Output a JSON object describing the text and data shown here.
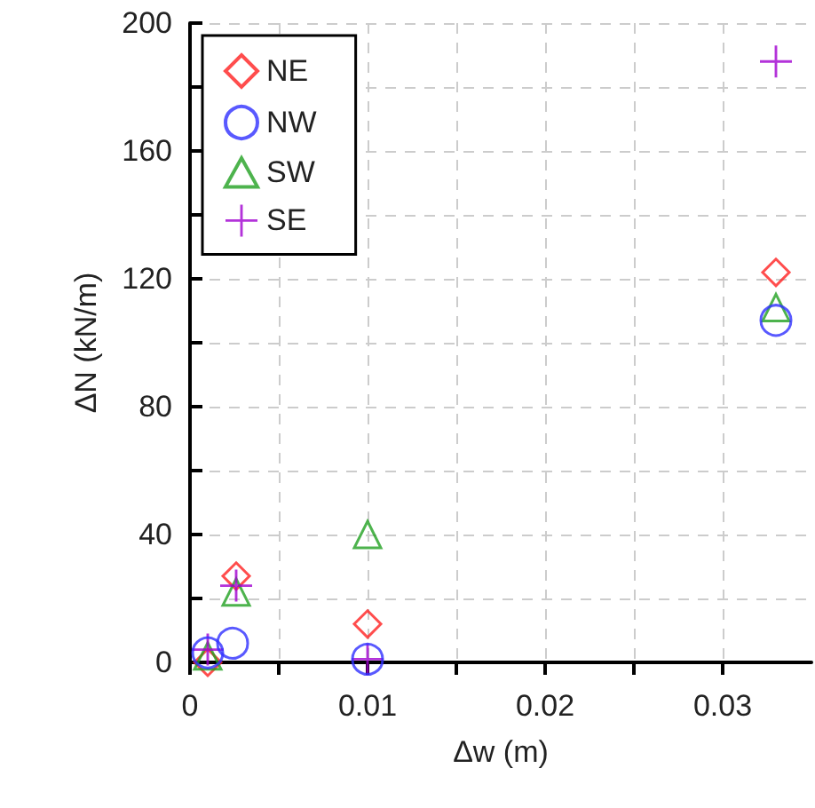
{
  "chart_data": {
    "type": "scatter",
    "xlabel": "Δw (m)",
    "ylabel": "ΔN (kN/m)",
    "xlim": [
      0,
      0.035
    ],
    "xticks": [
      0,
      0.01,
      0.02,
      0.03
    ],
    "ylim": [
      0,
      200
    ],
    "yticks": [
      0,
      40,
      80,
      120,
      160,
      200
    ],
    "grid": true,
    "legend": "top left",
    "series": [
      {
        "name": "NE",
        "color": "#ff2020",
        "marker": "diamond",
        "x": [
          0.001,
          0.0026,
          0.01,
          0.033
        ],
        "values": [
          0,
          27,
          12,
          122
        ]
      },
      {
        "name": "NW",
        "color": "#3030ff",
        "marker": "circle",
        "x": [
          0.001,
          0.0024,
          0.01,
          0.033
        ],
        "values": [
          3,
          6,
          1,
          107
        ]
      },
      {
        "name": "SW",
        "color": "#20a020",
        "marker": "triangle",
        "x": [
          0.001,
          0.0026,
          0.01,
          0.033
        ],
        "values": [
          2,
          22,
          40,
          111
        ]
      },
      {
        "name": "SE",
        "color": "#a000d0",
        "marker": "cross",
        "x": [
          0.001,
          0.0026,
          0.01,
          0.033
        ],
        "values": [
          4,
          24,
          1,
          188
        ]
      }
    ]
  }
}
